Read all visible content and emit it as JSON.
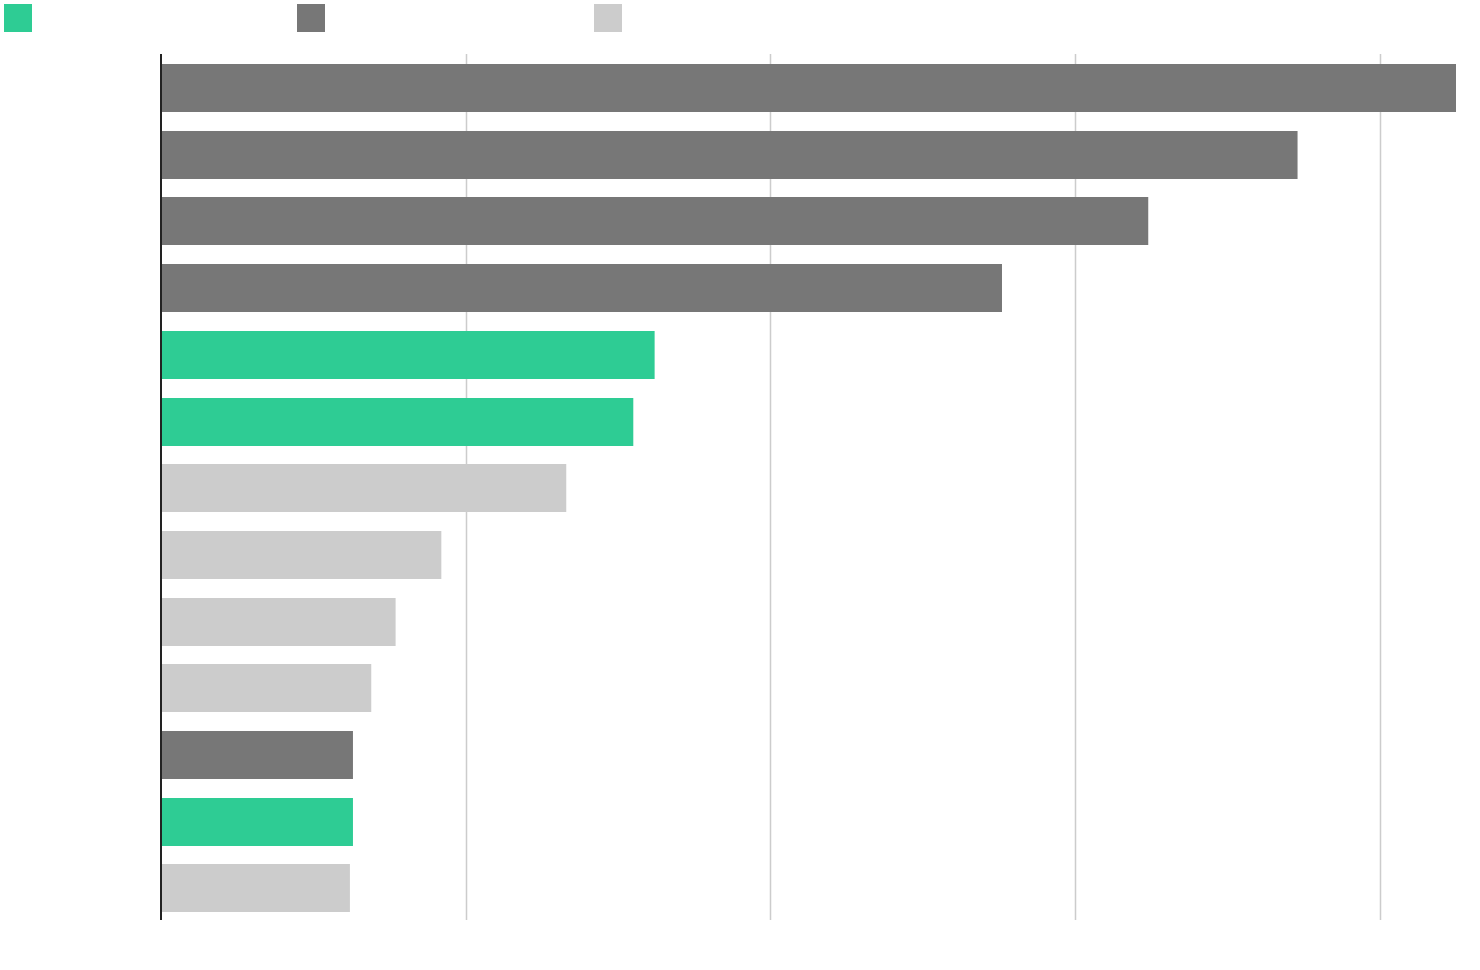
{
  "chart_data": {
    "type": "bar",
    "orientation": "horizontal",
    "title": "",
    "xlabel": "",
    "ylabel": "",
    "xlim": [
      0,
      4.25
    ],
    "grid": true,
    "gridlines": [
      1,
      2,
      3,
      4
    ],
    "legend_position": "top-left",
    "legend": [
      {
        "name": "",
        "color": "#2ECC94"
      },
      {
        "name": "",
        "color": "#777777"
      },
      {
        "name": "",
        "color": "#CCCCCC"
      }
    ],
    "categories": [
      "",
      "",
      "",
      "",
      "",
      "",
      "",
      "",
      "",
      "",
      "",
      "",
      ""
    ],
    "bars": [
      {
        "value": 4.25,
        "group": 1
      },
      {
        "value": 3.73,
        "group": 1
      },
      {
        "value": 3.24,
        "group": 1
      },
      {
        "value": 2.76,
        "group": 1
      },
      {
        "value": 1.62,
        "group": 0
      },
      {
        "value": 1.55,
        "group": 0
      },
      {
        "value": 1.33,
        "group": 2
      },
      {
        "value": 0.92,
        "group": 2
      },
      {
        "value": 0.77,
        "group": 2
      },
      {
        "value": 0.69,
        "group": 2
      },
      {
        "value": 0.63,
        "group": 1
      },
      {
        "value": 0.63,
        "group": 0
      },
      {
        "value": 0.62,
        "group": 2
      }
    ]
  }
}
